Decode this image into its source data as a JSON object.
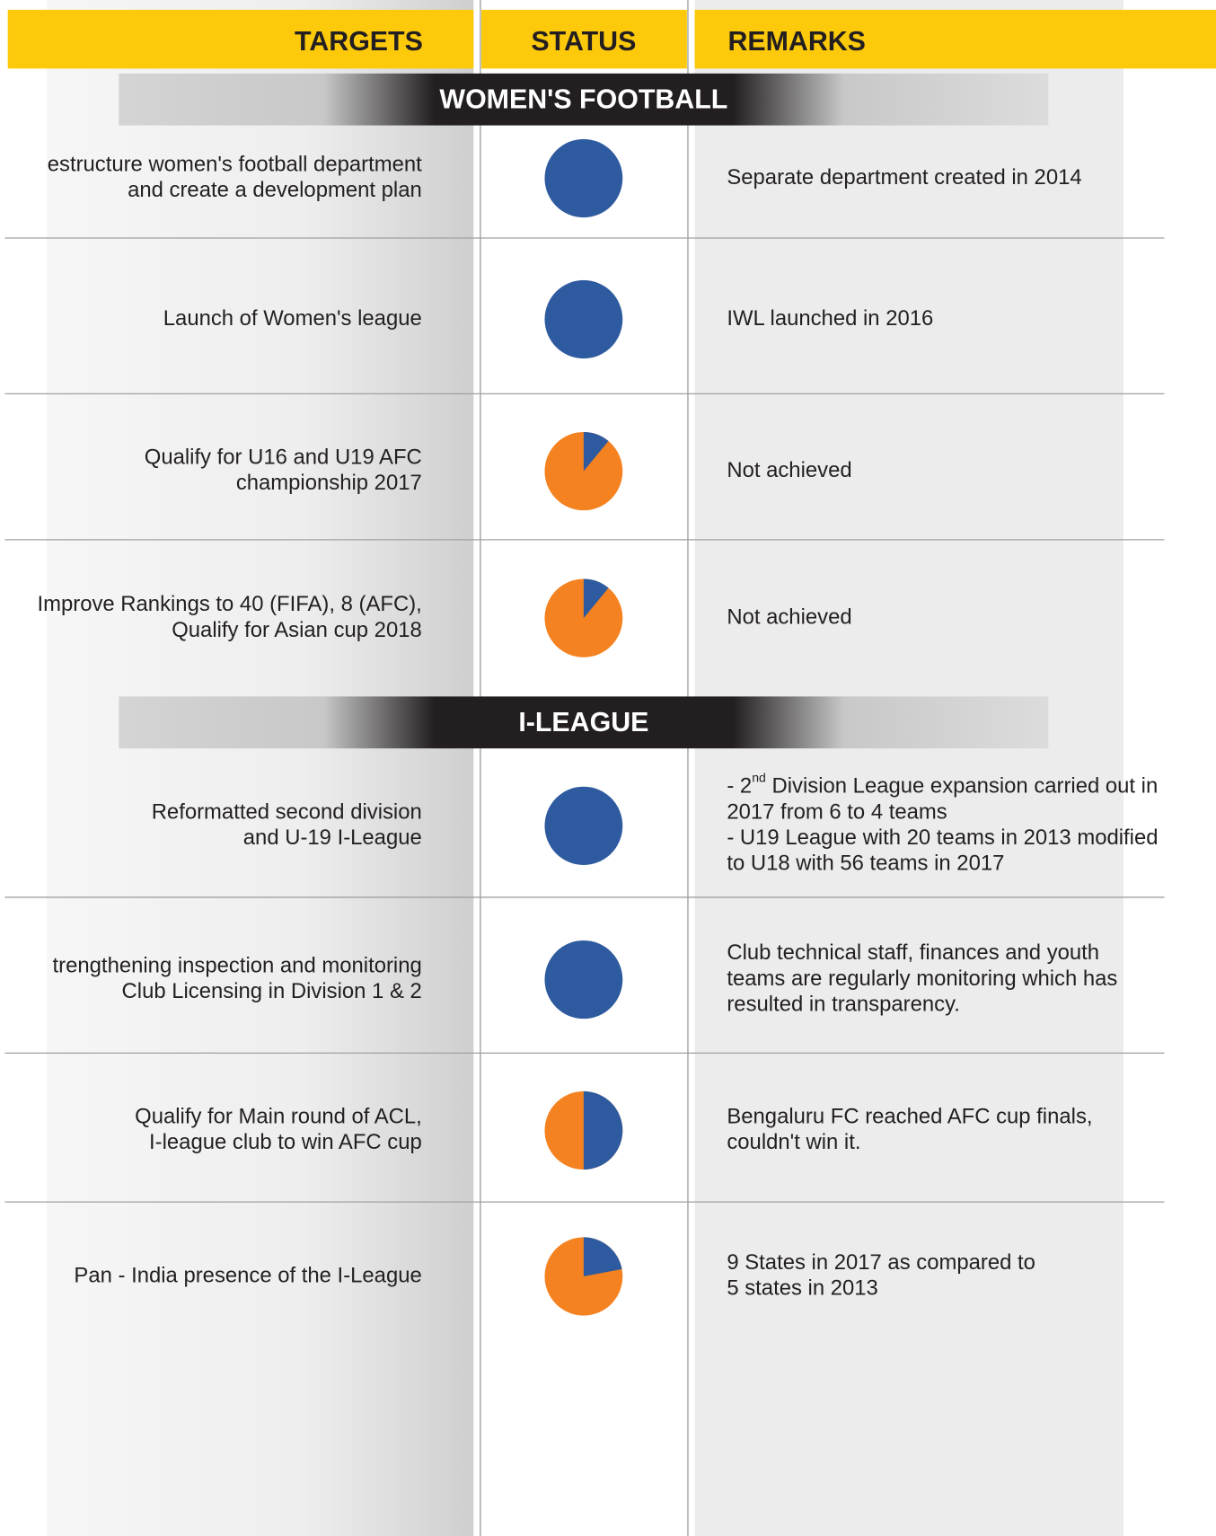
{
  "header": {
    "columns": [
      "TARGETS",
      "STATUS",
      "REMARKS"
    ]
  },
  "colors": {
    "achieved": "#2e5b9f",
    "pending": "#f58220"
  },
  "sections": [
    {
      "title": "WOMEN'S FOOTBALL",
      "rows": [
        {
          "target": [
            "estructure women's football department",
            "and create a development plan"
          ],
          "status": 100,
          "remarks": [
            "Separate department created in 2014"
          ]
        },
        {
          "target": [
            "Launch of Women's league"
          ],
          "status": 100,
          "remarks": [
            "IWL launched in 2016"
          ]
        },
        {
          "target": [
            "Qualify for U16 and U19 AFC",
            "championship 2017"
          ],
          "status": 11,
          "remarks": [
            "Not achieved"
          ]
        },
        {
          "target": [
            "Improve Rankings to 40 (FIFA), 8 (AFC),",
            "Qualify for Asian cup 2018"
          ],
          "status": 11,
          "remarks": [
            "Not achieved"
          ]
        }
      ]
    },
    {
      "title": "I-LEAGUE",
      "rows": [
        {
          "target": [
            "Reformatted second division",
            "and U-19 I-League"
          ],
          "status": 100,
          "remarks": [
            [
              {
                "text": "- 2"
              },
              {
                "text": "nd",
                "sup": true
              },
              {
                "text": " Division League expansion carried out in"
              }
            ],
            "2017 from 6 to 4 teams",
            "- U19 League with 20 teams in 2013 modified",
            "to U18 with 56 teams in 2017"
          ]
        },
        {
          "target": [
            "trengthening inspection and monitoring",
            "Club Licensing in Division 1 & 2"
          ],
          "status": 100,
          "remarks": [
            "Club technical staff, finances and youth",
            "teams are regularly monitoring which has",
            "resulted in transparency."
          ]
        },
        {
          "target": [
            "Qualify for Main round of ACL,",
            "I-league club to win AFC cup"
          ],
          "status": 50,
          "remarks": [
            "Bengaluru FC reached AFC cup finals,",
            "couldn't win it."
          ]
        },
        {
          "target": [
            "Pan - India presence of the I-League"
          ],
          "status": 22,
          "remarks": [
            "9 States in 2017 as compared to",
            "5 states in 2013"
          ]
        }
      ]
    }
  ]
}
